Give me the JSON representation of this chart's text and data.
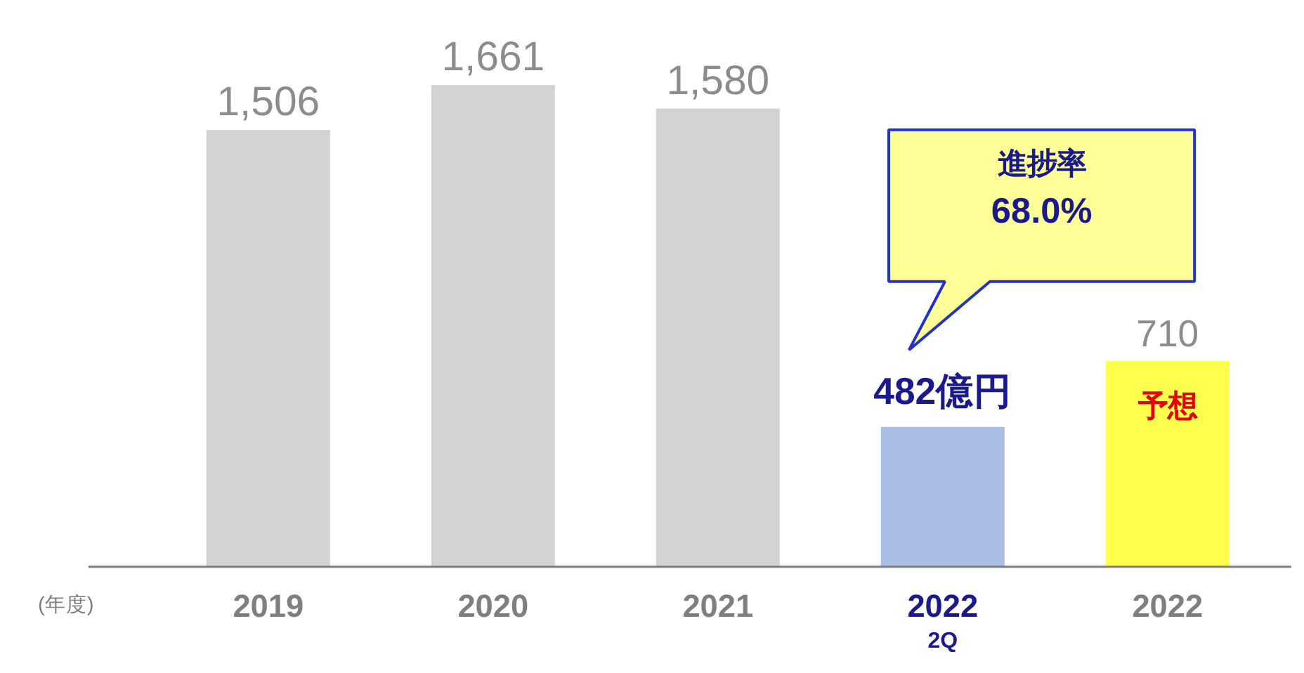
{
  "chart_data": {
    "type": "bar",
    "xlabel": "(年度)",
    "categories": [
      "2019",
      "2020",
      "2021",
      "2022\n2Q",
      "2022"
    ],
    "values": [
      1506,
      1661,
      1580,
      482,
      710
    ],
    "colors": [
      "#d3d3d3",
      "#d3d3d3",
      "#d3d3d3",
      "#a9bde6",
      "#ffff4d"
    ],
    "value_labels": [
      "1,506",
      "1,661",
      "1,580",
      "482億円",
      "710"
    ],
    "annotations": [
      "進捗率\n68.0%",
      "予想"
    ],
    "grid": false
  }
}
